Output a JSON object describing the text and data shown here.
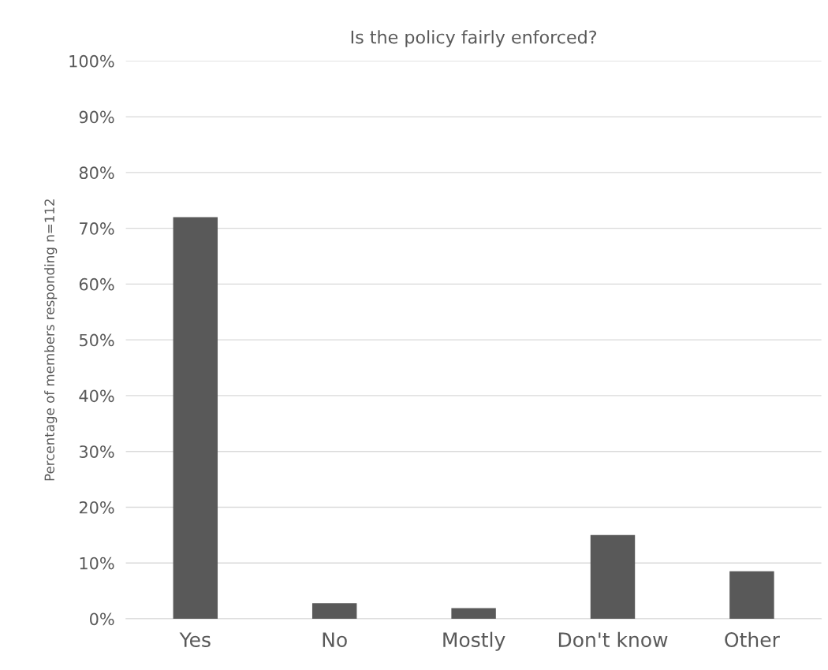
{
  "chart_data": {
    "type": "bar",
    "title": "Is the policy fairly enforced?",
    "ylabel": "Percentage of members responding n=112",
    "categories": [
      "Yes",
      "No",
      "Mostly",
      "Don't know",
      "Other"
    ],
    "values": [
      72,
      2.8,
      1.9,
      15,
      8.5
    ],
    "color": "#595959",
    "ylim": [
      0,
      100
    ],
    "yticks": [
      {
        "value": 0,
        "label": "0%"
      },
      {
        "value": 10,
        "label": "10%"
      },
      {
        "value": 20,
        "label": "20%"
      },
      {
        "value": 30,
        "label": "30%"
      },
      {
        "value": 40,
        "label": "40%"
      },
      {
        "value": 50,
        "label": "50%"
      },
      {
        "value": 60,
        "label": "60%"
      },
      {
        "value": 70,
        "label": "70%"
      },
      {
        "value": 80,
        "label": "80%"
      },
      {
        "value": 90,
        "label": "90%"
      },
      {
        "value": 100,
        "label": "100%"
      }
    ],
    "grid": "y",
    "legend": false
  }
}
